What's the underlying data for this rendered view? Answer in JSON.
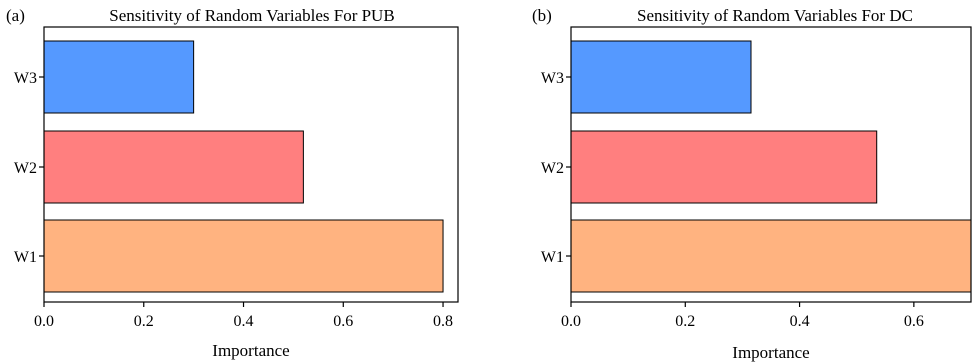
{
  "chart_data": [
    {
      "type": "bar",
      "orientation": "horizontal",
      "panel_label": "(a)",
      "title": "Sensitivity of Random Variables For PUB",
      "xlabel": "Importance",
      "ylabel": "",
      "categories": [
        "W3",
        "W2",
        "W1"
      ],
      "values": [
        0.3,
        0.52,
        0.8
      ],
      "colors": [
        "#5599ff",
        "#ff7f7f",
        "#ffb380"
      ],
      "xlim": [
        0.0,
        0.83
      ],
      "xticks": [
        "0.0",
        "0.2",
        "0.4",
        "0.6",
        "0.8"
      ],
      "grid": false
    },
    {
      "type": "bar",
      "orientation": "horizontal",
      "panel_label": "(b)",
      "title": "Sensitivity of Random Variables For DC",
      "xlabel": "Importance",
      "ylabel": "",
      "categories": [
        "W3",
        "W2",
        "W1"
      ],
      "values": [
        0.315,
        0.535,
        0.7
      ],
      "colors": [
        "#5599ff",
        "#ff7f7f",
        "#ffb380"
      ],
      "xlim": [
        0.0,
        0.7
      ],
      "xticks": [
        "0.0",
        "0.2",
        "0.4",
        "0.6"
      ],
      "grid": false
    }
  ]
}
